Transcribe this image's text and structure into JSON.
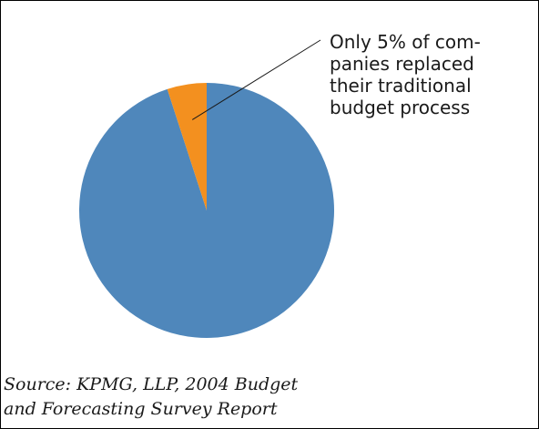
{
  "chart_data": {
    "type": "pie",
    "slices": [
      {
        "value": 95,
        "color": "#4f87bb"
      },
      {
        "value": 5,
        "color": "#f3901f"
      }
    ],
    "annotation": {
      "lines": [
        "Only 5% of com-",
        "panies replaced",
        "their traditional",
        "budget process"
      ],
      "points_to_slice": 1
    },
    "source_lines": [
      "Source:  KPMG, LLP, 2004 Budget",
      "and Forecasting Survey Report"
    ],
    "legend": "none"
  }
}
